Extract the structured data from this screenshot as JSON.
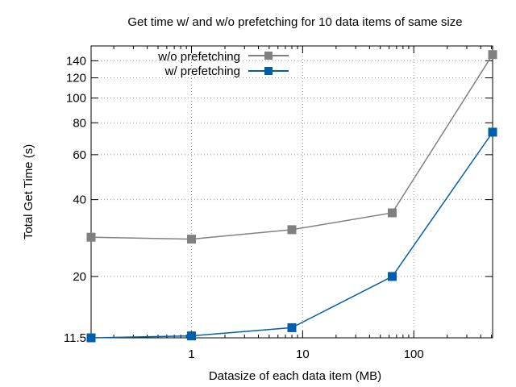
{
  "chart_data": {
    "type": "line",
    "title": "Get time w/ and w/o prefetching for 10 data items of same size",
    "xlabel": "Datasize of each data item (MB)",
    "ylabel": "Total Get Time (s)",
    "x_scale": "log",
    "y_scale": "log",
    "xlim": [
      0.125,
      512
    ],
    "ylim": [
      11.5,
      160
    ],
    "x_ticks": [
      1,
      10,
      100
    ],
    "x_tick_labels": [
      "1",
      "10",
      "100"
    ],
    "y_ticks": [
      11.5,
      20,
      40,
      60,
      80,
      100,
      120,
      140
    ],
    "y_tick_labels": [
      "11.5",
      "20",
      "40",
      "60",
      "80",
      "100",
      "120",
      "140"
    ],
    "grid": true,
    "legend_position": "top-left",
    "x": [
      0.125,
      1,
      8,
      64,
      512
    ],
    "series": [
      {
        "name": "w/o prefetching",
        "color": "#808080",
        "marker": "square",
        "values": [
          28.5,
          28.0,
          30.5,
          35.5,
          148
        ]
      },
      {
        "name": "w/ prefetching",
        "color": "#005fad",
        "marker": "square",
        "values": [
          11.5,
          11.7,
          12.6,
          20.0,
          73.5
        ]
      }
    ]
  }
}
